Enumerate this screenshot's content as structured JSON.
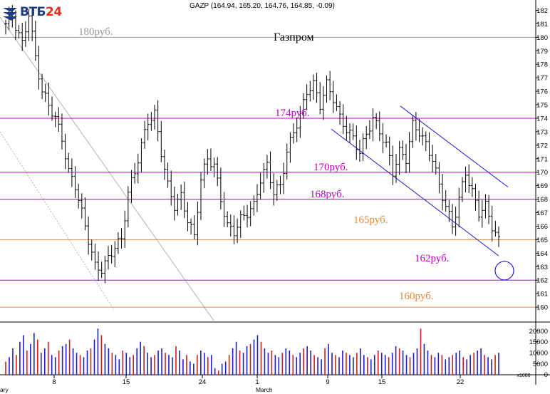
{
  "logo": {
    "brand": "ВТБ",
    "number": "24"
  },
  "header": {
    "text": "GAZP (164.94, 165.20, 164.76, 164.85, -0.09)"
  },
  "chart_data": {
    "type": "candlestick",
    "title": "Газпром",
    "ticker_readout": "GAZP (164.94, 165.20, 164.76, 164.85, -0.09)",
    "price_axis": {
      "ylim": [
        159,
        182.5
      ],
      "ticks": [
        160,
        161,
        162,
        163,
        164,
        165,
        166,
        167,
        168,
        169,
        170,
        171,
        172,
        173,
        174,
        175,
        176,
        177,
        178,
        179,
        180,
        181,
        182
      ]
    },
    "volume_axis": {
      "ylim": [
        0,
        23000
      ],
      "ticks": [
        5000,
        10000,
        15000,
        20000
      ],
      "unit_label": "x1000"
    },
    "x_ticks": [
      "8",
      "15",
      "24",
      "1",
      "9",
      "15",
      "22"
    ],
    "x_month_labels": [
      "ary",
      "March"
    ],
    "close_path": [
      {
        "t": 0,
        "v": 181.0
      },
      {
        "t": 2,
        "v": 181.5
      },
      {
        "t": 5,
        "v": 179.5
      },
      {
        "t": 7,
        "v": 181.8
      },
      {
        "t": 9,
        "v": 178.5
      },
      {
        "t": 11,
        "v": 176.0
      },
      {
        "t": 13,
        "v": 175.0
      },
      {
        "t": 15,
        "v": 174.0
      },
      {
        "t": 17,
        "v": 172.5
      },
      {
        "t": 19,
        "v": 170.0
      },
      {
        "t": 21,
        "v": 169.0
      },
      {
        "t": 23,
        "v": 167.0
      },
      {
        "t": 25,
        "v": 165.0
      },
      {
        "t": 27,
        "v": 163.0
      },
      {
        "t": 29,
        "v": 162.8
      },
      {
        "t": 31,
        "v": 163.6
      },
      {
        "t": 33,
        "v": 164.5
      },
      {
        "t": 35,
        "v": 165.0
      },
      {
        "t": 37,
        "v": 168.5
      },
      {
        "t": 39,
        "v": 170.0
      },
      {
        "t": 41,
        "v": 172.0
      },
      {
        "t": 43,
        "v": 173.8
      },
      {
        "t": 45,
        "v": 174.3
      },
      {
        "t": 47,
        "v": 171.5
      },
      {
        "t": 49,
        "v": 169.0
      },
      {
        "t": 51,
        "v": 167.5
      },
      {
        "t": 53,
        "v": 168.2
      },
      {
        "t": 55,
        "v": 166.5
      },
      {
        "t": 57,
        "v": 165.2
      },
      {
        "t": 59,
        "v": 169.5
      },
      {
        "t": 61,
        "v": 171.0
      },
      {
        "t": 63,
        "v": 170.5
      },
      {
        "t": 65,
        "v": 168.0
      },
      {
        "t": 67,
        "v": 166.0
      },
      {
        "t": 69,
        "v": 165.6
      },
      {
        "t": 71,
        "v": 166.5
      },
      {
        "t": 73,
        "v": 167.0
      },
      {
        "t": 75,
        "v": 167.5
      },
      {
        "t": 77,
        "v": 169.5
      },
      {
        "t": 79,
        "v": 170.5
      },
      {
        "t": 81,
        "v": 168.5
      },
      {
        "t": 83,
        "v": 169.0
      },
      {
        "t": 85,
        "v": 171.5
      },
      {
        "t": 87,
        "v": 173.0
      },
      {
        "t": 89,
        "v": 174.2
      },
      {
        "t": 91,
        "v": 176.0
      },
      {
        "t": 93,
        "v": 176.5
      },
      {
        "t": 95,
        "v": 175.0
      },
      {
        "t": 97,
        "v": 176.5
      },
      {
        "t": 99,
        "v": 175.5
      },
      {
        "t": 101,
        "v": 174.0
      },
      {
        "t": 103,
        "v": 173.2
      },
      {
        "t": 105,
        "v": 172.5
      },
      {
        "t": 107,
        "v": 171.5
      },
      {
        "t": 109,
        "v": 172.8
      },
      {
        "t": 111,
        "v": 174.0
      },
      {
        "t": 113,
        "v": 173.0
      },
      {
        "t": 115,
        "v": 172.0
      },
      {
        "t": 117,
        "v": 170.0
      },
      {
        "t": 119,
        "v": 171.5
      },
      {
        "t": 121,
        "v": 171.0
      },
      {
        "t": 123,
        "v": 173.5
      },
      {
        "t": 125,
        "v": 173.0
      },
      {
        "t": 127,
        "v": 172.0
      },
      {
        "t": 129,
        "v": 171.0
      },
      {
        "t": 131,
        "v": 169.0
      },
      {
        "t": 133,
        "v": 167.5
      },
      {
        "t": 135,
        "v": 166.0
      },
      {
        "t": 137,
        "v": 168.0
      },
      {
        "t": 139,
        "v": 170.0
      },
      {
        "t": 141,
        "v": 168.5
      },
      {
        "t": 143,
        "v": 167.0
      },
      {
        "t": 145,
        "v": 167.5
      },
      {
        "t": 147,
        "v": 166.0
      },
      {
        "t": 149,
        "v": 164.9
      }
    ],
    "volume": [
      6000,
      8000,
      12000,
      9000,
      15000,
      18000,
      11000,
      14000,
      19000,
      16000,
      10000,
      12000,
      15000,
      9000,
      8000,
      11000,
      13000,
      14000,
      16000,
      12000,
      10000,
      9000,
      8000,
      11000,
      12000,
      16000,
      21000,
      18000,
      14000,
      12000,
      10000,
      9000,
      7000,
      11000,
      10000,
      8000,
      9000,
      12000,
      15000,
      13000,
      10000,
      8000,
      9000,
      11000,
      12000,
      10000,
      9000,
      8000,
      13000,
      11000,
      7000,
      9000,
      6000,
      5000,
      9000,
      11000,
      10000,
      8000,
      9000,
      3000,
      2000,
      5000,
      6000,
      9000,
      12000,
      15000,
      11000,
      10000,
      13000,
      14000,
      16000,
      18000,
      15000,
      12000,
      10000,
      11000,
      9000,
      8000,
      10000,
      12000,
      11000,
      9000,
      8000,
      10000,
      12000,
      13000,
      11000,
      9000,
      8000,
      7000,
      12000,
      14000,
      10000,
      9000,
      8000,
      11000,
      10000,
      9000,
      8000,
      10000,
      12000,
      9000,
      8000,
      7000,
      9000,
      11000,
      10000,
      9000,
      8000,
      10000,
      13000,
      12000,
      11000,
      9000,
      8000,
      10000,
      12000,
      21000,
      14000,
      11000,
      9000,
      8000,
      10000,
      9000,
      7000,
      8000,
      9000,
      10000,
      11000,
      8000,
      7000,
      9000,
      10000,
      11000,
      12000,
      9000,
      8000,
      7000,
      9000,
      10000
    ],
    "levels": [
      {
        "value": 180,
        "label": "180руб.",
        "color": "#999999"
      },
      {
        "value": 174,
        "label": "174руб.",
        "color": "#c000c0"
      },
      {
        "value": 170,
        "label": "170руб.",
        "color": "#c000c0"
      },
      {
        "value": 168,
        "label": "168руб.",
        "color": "#c000c0"
      },
      {
        "value": 165,
        "label": "165руб.",
        "color": "#e08a40"
      },
      {
        "value": 162,
        "label": "162руб.",
        "color": "#c000c0"
      },
      {
        "value": 160,
        "label": "160руб.",
        "color": "#e08a40"
      }
    ],
    "colors": {
      "level_magenta": "#c000c0",
      "level_orange": "#e08a40",
      "channel": "#1c1ccc",
      "volume_up": "#1c1cd0",
      "volume_down": "#d01c1c",
      "guide": "#a0a0a0"
    }
  }
}
